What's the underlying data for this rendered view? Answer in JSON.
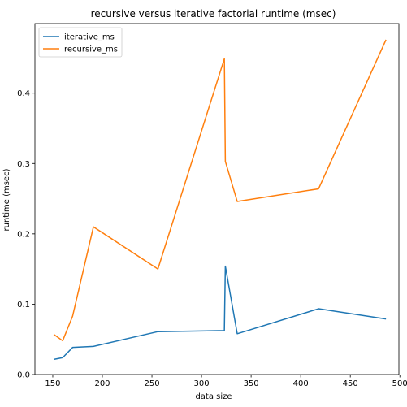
{
  "chart_data": {
    "type": "line",
    "title": "recursive versus iterative factorial runtime (msec)",
    "xlabel": "data size",
    "ylabel": "runtime (msec)",
    "xlim": [
      132,
      499
    ],
    "ylim": [
      0.0,
      0.499
    ],
    "xticks": [
      150,
      200,
      250,
      300,
      350,
      400,
      450,
      500
    ],
    "yticks": [
      0.0,
      0.1,
      0.2,
      0.3,
      0.4
    ],
    "ytick_labels": [
      "0.0",
      "0.1",
      "0.2",
      "0.3",
      "0.4"
    ],
    "grid": false,
    "legend_position": "upper-left",
    "series": [
      {
        "name": "iterative_ms",
        "color": "#1f77b4",
        "x": [
          151,
          160,
          170,
          191,
          256,
          323,
          324,
          336,
          418,
          486
        ],
        "y": [
          0.0215,
          0.024,
          0.0385,
          0.04,
          0.061,
          0.0625,
          0.154,
          0.058,
          0.0935,
          0.079
        ]
      },
      {
        "name": "recursive_ms",
        "color": "#ff7f0e",
        "x": [
          151,
          160,
          170,
          191,
          256,
          323,
          324,
          336,
          418,
          486
        ],
        "y": [
          0.057,
          0.048,
          0.083,
          0.21,
          0.15,
          0.449,
          0.303,
          0.246,
          0.264,
          0.476
        ]
      }
    ]
  }
}
